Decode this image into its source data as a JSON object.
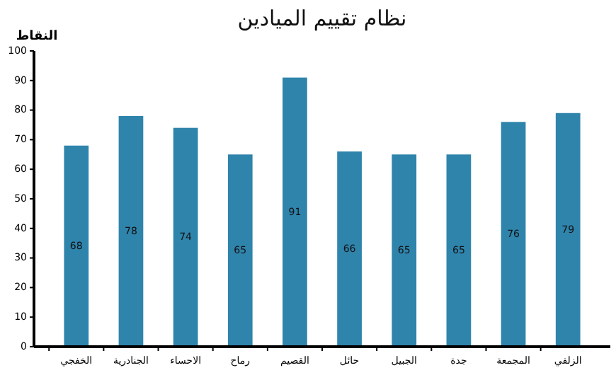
{
  "chart_data": {
    "type": "bar",
    "title": "نظام تقييم الميادين",
    "ylabel": "النقاط",
    "categories": [
      "الخفجي",
      "الجنادرية",
      "الاحساء",
      "رماح",
      "القصيم",
      "حائل",
      "الجبيل",
      "جدة",
      "المجمعة",
      "الزلفي"
    ],
    "values": [
      68,
      78,
      74,
      65,
      91,
      66,
      65,
      65,
      76,
      79
    ],
    "color": "#2f84ac",
    "ylim": [
      0,
      100
    ],
    "yticks": [
      0,
      10,
      20,
      30,
      40,
      50,
      60,
      70,
      80,
      90,
      100
    ],
    "grid": false,
    "data_labels": true
  }
}
